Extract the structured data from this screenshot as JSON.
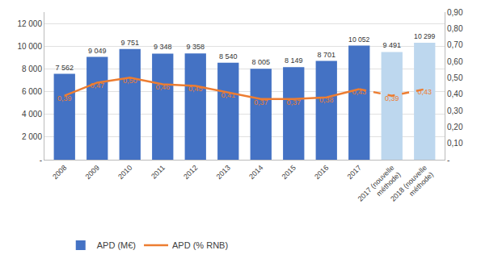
{
  "chart_data": {
    "type": "bar",
    "categories": [
      "2008",
      "2009",
      "2010",
      "2011",
      "2012",
      "2013",
      "2014",
      "2015",
      "2016",
      "2017",
      "2017 (nouvelle\nméthode)",
      "2018 (nouvelle\nméthode)"
    ],
    "series": [
      {
        "name": "APD (M€)",
        "type": "bar",
        "colors": [
          "#4472C4",
          "#4472C4",
          "#4472C4",
          "#4472C4",
          "#4472C4",
          "#4472C4",
          "#4472C4",
          "#4472C4",
          "#4472C4",
          "#4472C4",
          "#BDD7EE",
          "#BDD7EE"
        ],
        "values": [
          7562,
          9049,
          9751,
          9348,
          9358,
          8540,
          8005,
          8149,
          8701,
          10052,
          9491,
          10299
        ],
        "value_labels": [
          "7 562",
          "9 049",
          "9 751",
          "9 348",
          "9 358",
          "8 540",
          "8 005",
          "8 149",
          "8 701",
          "10 052",
          "9 491",
          "10 299"
        ]
      },
      {
        "name": "APD (% RNB)",
        "type": "line",
        "axis": "y2",
        "color": "#ED7D31",
        "line_style": "solid",
        "values": [
          0.39,
          0.47,
          0.5,
          0.46,
          0.45,
          0.41,
          0.37,
          0.37,
          0.38,
          0.43,
          0.39,
          0.43
        ],
        "value_labels": [
          "0,39",
          "0,47",
          "0,50",
          "0,46",
          "0,45",
          "0,41",
          "0,37",
          "0,37",
          "0,38",
          "0,43",
          "0,39",
          "0,43"
        ]
      }
    ],
    "ylim": [
      0,
      13000
    ],
    "yticks": [
      {
        "value": 0,
        "label": "-"
      },
      {
        "value": 2000,
        "label": "2 000"
      },
      {
        "value": 4000,
        "label": "4 000"
      },
      {
        "value": 6000,
        "label": "6 000"
      },
      {
        "value": 8000,
        "label": "8 000"
      },
      {
        "value": 10000,
        "label": "10 000"
      },
      {
        "value": 12000,
        "label": "12 000"
      }
    ],
    "y2lim": [
      0,
      0.9
    ],
    "y2ticks": [
      {
        "value": 0.0,
        "label": "-"
      },
      {
        "value": 0.1,
        "label": "0,10"
      },
      {
        "value": 0.2,
        "label": "0,20"
      },
      {
        "value": 0.3,
        "label": "0,30"
      },
      {
        "value": 0.4,
        "label": "0,40"
      },
      {
        "value": 0.5,
        "label": "0,50"
      },
      {
        "value": 0.6,
        "label": "0,60"
      },
      {
        "value": 0.7,
        "label": "0,70"
      },
      {
        "value": 0.8,
        "label": "0,80"
      },
      {
        "value": 0.9,
        "label": "0,90"
      }
    ],
    "grid": true,
    "legend": "bottom",
    "data_labels": true
  }
}
